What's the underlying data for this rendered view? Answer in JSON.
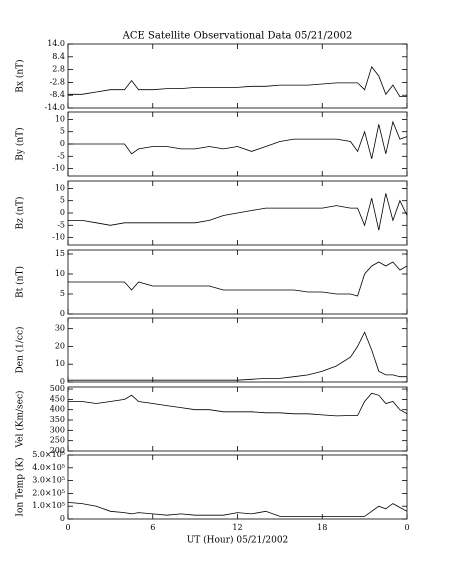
{
  "chart_data": [
    {
      "type": "line",
      "title": "ACE Satellite Observational Data   05/21/2002",
      "ylabel": "Bx (nT)",
      "x": [
        0,
        1,
        2,
        3,
        4,
        4.5,
        5,
        6,
        7,
        8,
        9,
        10,
        11,
        12,
        13,
        14,
        15,
        16,
        17,
        18,
        19,
        20,
        20.5,
        21,
        21.5,
        22,
        22.5,
        23,
        23.5,
        24
      ],
      "series": [
        {
          "color": "#000000",
          "values": [
            -8,
            -8,
            -7,
            -6,
            -6,
            -2,
            -6,
            -6,
            -5.5,
            -5.5,
            -5,
            -5,
            -5,
            -5,
            -4.5,
            -4.5,
            -4,
            -4,
            -4,
            -3.5,
            -3,
            -3,
            -3,
            -6,
            4,
            0,
            -8,
            -4,
            -9,
            -9
          ]
        }
      ],
      "xlim": [
        0,
        24
      ],
      "xticks": [
        0,
        6,
        12,
        18,
        {
          "value": 24,
          "label": "0"
        }
      ],
      "ylim": [
        -14,
        14
      ],
      "yticks": [
        {
          "value": 14,
          "label": "14.0"
        },
        8.4,
        2.8,
        -2.8,
        -8.4,
        {
          "value": -14,
          "label": "-14.0"
        }
      ]
    },
    {
      "type": "line",
      "ylabel": "By (nT)",
      "x": [
        0,
        1,
        2,
        3,
        4,
        4.5,
        5,
        6,
        7,
        8,
        9,
        10,
        11,
        12,
        13,
        14,
        15,
        16,
        17,
        18,
        19,
        20,
        20.5,
        21,
        21.5,
        22,
        22.5,
        23,
        23.5,
        24
      ],
      "series": [
        {
          "color": "#000000",
          "values": [
            0,
            0,
            0,
            0,
            0,
            -4,
            -2,
            -1,
            -1,
            -2,
            -2,
            -1,
            -2,
            -1,
            -3,
            -1,
            1,
            2,
            2,
            2,
            2,
            1,
            -3,
            5,
            -6,
            8,
            -4,
            9,
            2,
            3
          ]
        }
      ],
      "xlim": [
        0,
        24
      ],
      "xticks": [
        0,
        6,
        12,
        18,
        {
          "value": 24,
          "label": "0"
        }
      ],
      "ylim": [
        -13,
        13
      ],
      "yticks": [
        10,
        5,
        0,
        -5,
        -10
      ]
    },
    {
      "type": "line",
      "ylabel": "Bz (nT)",
      "x": [
        0,
        1,
        2,
        3,
        4,
        4.5,
        5,
        6,
        7,
        8,
        9,
        10,
        11,
        12,
        13,
        14,
        15,
        16,
        17,
        18,
        19,
        20,
        20.5,
        21,
        21.5,
        22,
        22.5,
        23,
        23.5,
        24
      ],
      "series": [
        {
          "color": "#000000",
          "values": [
            -3,
            -3,
            -4,
            -5,
            -4,
            -4,
            -4,
            -4,
            -4,
            -4,
            -4,
            -3,
            -1,
            0,
            1,
            2,
            2,
            2,
            2,
            2,
            3,
            2,
            2,
            -5,
            6,
            -7,
            8,
            -3,
            5,
            -1
          ]
        }
      ],
      "xlim": [
        0,
        24
      ],
      "xticks": [
        0,
        6,
        12,
        18,
        {
          "value": 24,
          "label": "0"
        }
      ],
      "ylim": [
        -13,
        13
      ],
      "yticks": [
        10,
        5,
        0,
        -5,
        -10
      ]
    },
    {
      "type": "line",
      "ylabel": "Bt (nT)",
      "x": [
        0,
        1,
        2,
        3,
        4,
        4.5,
        5,
        6,
        7,
        8,
        9,
        10,
        11,
        12,
        13,
        14,
        15,
        16,
        17,
        18,
        19,
        20,
        20.5,
        21,
        21.5,
        22,
        22.5,
        23,
        23.5,
        24
      ],
      "series": [
        {
          "color": "#000000",
          "values": [
            8,
            8,
            8,
            8,
            8,
            6,
            8,
            7,
            7,
            7,
            7,
            7,
            6,
            6,
            6,
            6,
            6,
            6,
            5.5,
            5.5,
            5,
            5,
            4.5,
            10,
            12,
            13,
            12,
            13,
            11,
            12
          ]
        }
      ],
      "xlim": [
        0,
        24
      ],
      "xticks": [
        0,
        6,
        12,
        18,
        {
          "value": 24,
          "label": "0"
        }
      ],
      "ylim": [
        0,
        16
      ],
      "yticks": [
        15,
        10,
        5,
        0
      ]
    },
    {
      "type": "line",
      "ylabel": "Den (1/cc)",
      "x": [
        0,
        1,
        2,
        3,
        4,
        4.5,
        5,
        6,
        7,
        8,
        9,
        10,
        11,
        12,
        13,
        14,
        15,
        16,
        17,
        18,
        19,
        20,
        20.5,
        21,
        21.5,
        22,
        22.5,
        23,
        23.5,
        24
      ],
      "series": [
        {
          "color": "#000000",
          "values": [
            1,
            1,
            1,
            1,
            1,
            1,
            1,
            1,
            1,
            1,
            1,
            1,
            1,
            1,
            1.5,
            2,
            2,
            3,
            4,
            6,
            9,
            14,
            20,
            28,
            18,
            6,
            4,
            4,
            3,
            3
          ]
        }
      ],
      "xlim": [
        0,
        24
      ],
      "xticks": [
        0,
        6,
        12,
        18,
        {
          "value": 24,
          "label": "0"
        }
      ],
      "ylim": [
        0,
        36
      ],
      "yticks": [
        30,
        20,
        10,
        0
      ]
    },
    {
      "type": "line",
      "ylabel": "Vel (Km/sec)",
      "x": [
        0,
        1,
        2,
        3,
        4,
        4.5,
        5,
        6,
        7,
        8,
        9,
        10,
        11,
        12,
        13,
        14,
        15,
        16,
        17,
        18,
        19,
        20,
        20.5,
        21,
        21.5,
        22,
        22.5,
        23,
        23.5,
        24
      ],
      "series": [
        {
          "color": "#000000",
          "values": [
            440,
            440,
            430,
            440,
            450,
            470,
            440,
            430,
            420,
            410,
            400,
            400,
            390,
            390,
            390,
            385,
            385,
            380,
            380,
            375,
            370,
            372,
            372,
            440,
            480,
            470,
            430,
            440,
            400,
            380
          ]
        }
      ],
      "xlim": [
        0,
        24
      ],
      "xticks": [
        0,
        6,
        12,
        18,
        {
          "value": 24,
          "label": "0"
        }
      ],
      "ylim": [
        200,
        510
      ],
      "yticks": [
        500,
        450,
        400,
        350,
        300,
        250,
        200
      ]
    },
    {
      "type": "line",
      "ylabel": "Ion Temp (K)",
      "xlabel": "UT (Hour)   05/21/2002",
      "x": [
        0,
        1,
        2,
        3,
        4,
        4.5,
        5,
        6,
        7,
        8,
        9,
        10,
        11,
        12,
        13,
        14,
        15,
        16,
        17,
        18,
        19,
        20,
        20.5,
        21,
        21.5,
        22,
        22.5,
        23,
        23.5,
        24
      ],
      "series": [
        {
          "color": "#000000",
          "values": [
            130000,
            120000,
            100000,
            60000,
            50000,
            40000,
            50000,
            40000,
            30000,
            40000,
            30000,
            30000,
            30000,
            50000,
            40000,
            60000,
            20000,
            20000,
            20000,
            20000,
            20000,
            20000,
            20000,
            20000,
            60000,
            100000,
            80000,
            120000,
            90000,
            60000
          ]
        }
      ],
      "xlim": [
        0,
        24
      ],
      "xticks": [
        0,
        6,
        12,
        18,
        {
          "value": 24,
          "label": "0"
        }
      ],
      "ylim": [
        0,
        500000
      ],
      "yticks": [
        {
          "value": 500000,
          "label": "5.0×10⁵"
        },
        {
          "value": 400000,
          "label": "4.0×10⁵"
        },
        {
          "value": 300000,
          "label": "3.0×10⁵"
        },
        {
          "value": 200000,
          "label": "2.0×10⁵"
        },
        {
          "value": 100000,
          "label": "1.0×10⁵"
        },
        0
      ]
    }
  ]
}
